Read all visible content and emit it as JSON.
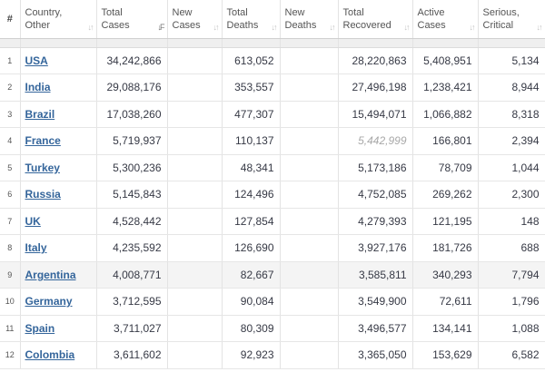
{
  "header": {
    "idx": "#",
    "country_l1": "Country,",
    "country_l2": "Other",
    "total_cases_l1": "Total",
    "total_cases_l2": "Cases",
    "new_cases_l1": "New",
    "new_cases_l2": "Cases",
    "total_deaths_l1": "Total",
    "total_deaths_l2": "Deaths",
    "new_deaths_l1": "New",
    "new_deaths_l2": "Deaths",
    "total_recovered_l1": "Total",
    "total_recovered_l2": "Recovered",
    "active_cases_l1": "Active",
    "active_cases_l2": "Cases",
    "serious_l1": "Serious,",
    "serious_l2": "Critical",
    "sort_icon": "↓↑",
    "sort_active_icon": "↓F"
  },
  "rows": [
    {
      "idx": "1",
      "country": "USA",
      "total_cases": "34,242,866",
      "new_cases": "",
      "total_deaths": "613,052",
      "new_deaths": "",
      "total_recovered": "28,220,863",
      "active_cases": "5,408,951",
      "serious": "5,134"
    },
    {
      "idx": "2",
      "country": "India",
      "total_cases": "29,088,176",
      "new_cases": "",
      "total_deaths": "353,557",
      "new_deaths": "",
      "total_recovered": "27,496,198",
      "active_cases": "1,238,421",
      "serious": "8,944"
    },
    {
      "idx": "3",
      "country": "Brazil",
      "total_cases": "17,038,260",
      "new_cases": "",
      "total_deaths": "477,307",
      "new_deaths": "",
      "total_recovered": "15,494,071",
      "active_cases": "1,066,882",
      "serious": "8,318"
    },
    {
      "idx": "4",
      "country": "France",
      "total_cases": "5,719,937",
      "new_cases": "",
      "total_deaths": "110,137",
      "new_deaths": "",
      "total_recovered": "5,442,999",
      "active_cases": "166,801",
      "serious": "2,394"
    },
    {
      "idx": "5",
      "country": "Turkey",
      "total_cases": "5,300,236",
      "new_cases": "",
      "total_deaths": "48,341",
      "new_deaths": "",
      "total_recovered": "5,173,186",
      "active_cases": "78,709",
      "serious": "1,044"
    },
    {
      "idx": "6",
      "country": "Russia",
      "total_cases": "5,145,843",
      "new_cases": "",
      "total_deaths": "124,496",
      "new_deaths": "",
      "total_recovered": "4,752,085",
      "active_cases": "269,262",
      "serious": "2,300"
    },
    {
      "idx": "7",
      "country": "UK",
      "total_cases": "4,528,442",
      "new_cases": "",
      "total_deaths": "127,854",
      "new_deaths": "",
      "total_recovered": "4,279,393",
      "active_cases": "121,195",
      "serious": "148"
    },
    {
      "idx": "8",
      "country": "Italy",
      "total_cases": "4,235,592",
      "new_cases": "",
      "total_deaths": "126,690",
      "new_deaths": "",
      "total_recovered": "3,927,176",
      "active_cases": "181,726",
      "serious": "688"
    },
    {
      "idx": "9",
      "country": "Argentina",
      "total_cases": "4,008,771",
      "new_cases": "",
      "total_deaths": "82,667",
      "new_deaths": "",
      "total_recovered": "3,585,811",
      "active_cases": "340,293",
      "serious": "7,794"
    },
    {
      "idx": "10",
      "country": "Germany",
      "total_cases": "3,712,595",
      "new_cases": "",
      "total_deaths": "90,084",
      "new_deaths": "",
      "total_recovered": "3,549,900",
      "active_cases": "72,611",
      "serious": "1,796"
    },
    {
      "idx": "11",
      "country": "Spain",
      "total_cases": "3,711,027",
      "new_cases": "",
      "total_deaths": "80,309",
      "new_deaths": "",
      "total_recovered": "3,496,577",
      "active_cases": "134,141",
      "serious": "1,088"
    },
    {
      "idx": "12",
      "country": "Colombia",
      "total_cases": "3,611,602",
      "new_cases": "",
      "total_deaths": "92,923",
      "new_deaths": "",
      "total_recovered": "3,365,050",
      "active_cases": "153,629",
      "serious": "6,582"
    }
  ],
  "highlighted_row_index": 9,
  "estimated_value_row_index": 4,
  "colors": {
    "link": "#34659b",
    "text": "#363945",
    "estimated": "#a8a8a8",
    "highlight_bg": "#f4f4f4"
  }
}
